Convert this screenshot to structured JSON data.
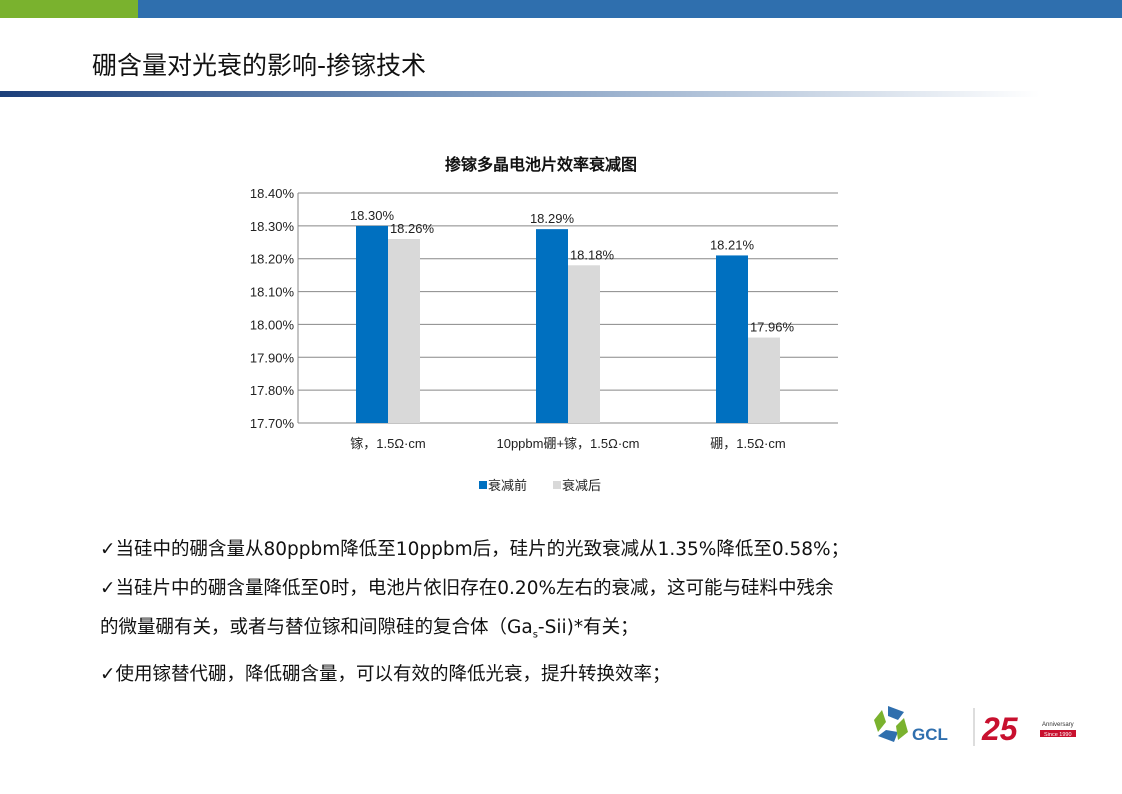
{
  "slide": {
    "title": "硼含量对光衰的影响-掺镓技术",
    "bullets": [
      "✓当硅中的硼含量从80ppbm降低至10ppbm后，硅片的光致衰减从1.35%降低至0.58%；",
      "✓当硅片中的硼含量降低至0时，电池片依旧存在0.20%左右的衰减，这可能与硅料中残余",
      "的微量硼有关，或者与替位镓和间隙硅的复合体（Ga",
      "s",
      "-Sii)*有关；",
      "✓使用镓替代硼，降低硼含量，可以有效的降低光衰，提升转换效率；"
    ],
    "logo": {
      "brand": "GCL",
      "anniversary": "25",
      "anniversary_text": "Anniversary",
      "since": "Since 1990"
    }
  },
  "colors": {
    "before": "#0070c0",
    "after": "#d9d9d9",
    "topbar": "#2f6fae",
    "topbar_accent": "#7ab22e"
  },
  "chart_data": {
    "type": "bar",
    "title": "掺镓多晶电池片效率衰减图",
    "categories": [
      "镓，1.5Ω·cm",
      "10ppbm硼+镓，1.5Ω·cm",
      "硼，1.5Ω·cm"
    ],
    "series": [
      {
        "name": "衰减前",
        "values": [
          18.3,
          18.29,
          18.21
        ]
      },
      {
        "name": "衰减后",
        "values": [
          18.26,
          18.18,
          17.96
        ]
      }
    ],
    "data_labels": [
      [
        "18.30%",
        "18.29%",
        "18.21%"
      ],
      [
        "18.26%",
        "18.18%",
        "17.96%"
      ]
    ],
    "yticks": [
      "17.70%",
      "17.80%",
      "17.90%",
      "18.00%",
      "18.10%",
      "18.20%",
      "18.30%",
      "18.40%"
    ],
    "ylim": [
      17.7,
      18.4
    ],
    "grid": true,
    "legend": "bottom"
  }
}
